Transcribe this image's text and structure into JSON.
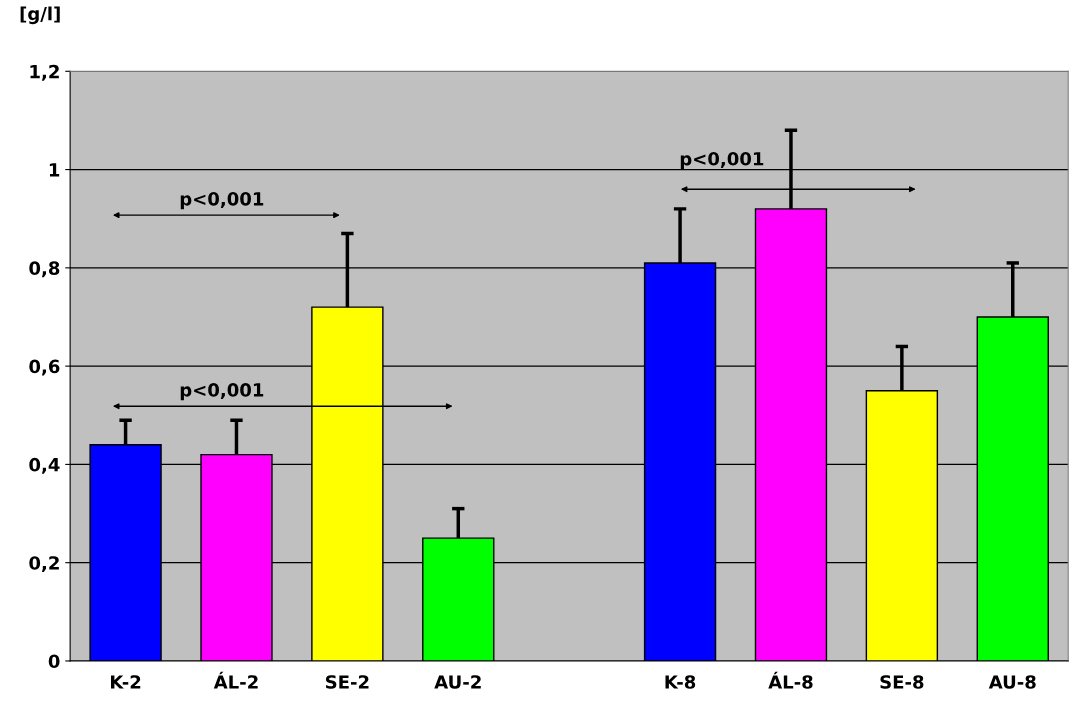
{
  "chart_data": {
    "type": "bar",
    "ylabel": "[g/l]",
    "categories": [
      "K-2",
      "ÁL-2",
      "SE-2",
      "AU-2",
      null,
      "K-8",
      "ÁL-8",
      "SE-8",
      "AU-8"
    ],
    "values": [
      0.44,
      0.42,
      0.72,
      0.25,
      null,
      0.81,
      0.92,
      0.55,
      0.7
    ],
    "colors": [
      "#0000ff",
      "#ff00ff",
      "#ffff00",
      "#00ff00",
      null,
      "#0000ff",
      "#ff00ff",
      "#ffff00",
      "#00ff00"
    ],
    "errors": [
      [
        0.44,
        0.49
      ],
      [
        0.42,
        0.49
      ],
      [
        0.72,
        0.87
      ],
      [
        0.25,
        0.31
      ],
      null,
      [
        0.81,
        0.92
      ],
      [
        0.92,
        1.08
      ],
      [
        0.55,
        0.64
      ],
      [
        0.7,
        0.81
      ]
    ],
    "ylim": [
      0,
      1.2
    ],
    "yticks": [
      0,
      {
        "value": 0.2,
        "label": "0,2"
      },
      {
        "value": 0.4,
        "label": "0,4"
      },
      {
        "value": 0.6,
        "label": "0,6"
      },
      {
        "value": 0.8,
        "label": "0,8"
      },
      1,
      {
        "value": 1.2,
        "label": "1,2"
      }
    ],
    "grid": "y",
    "annotations": [
      "p<0,001",
      "p<0,001",
      "p<0,001"
    ]
  }
}
